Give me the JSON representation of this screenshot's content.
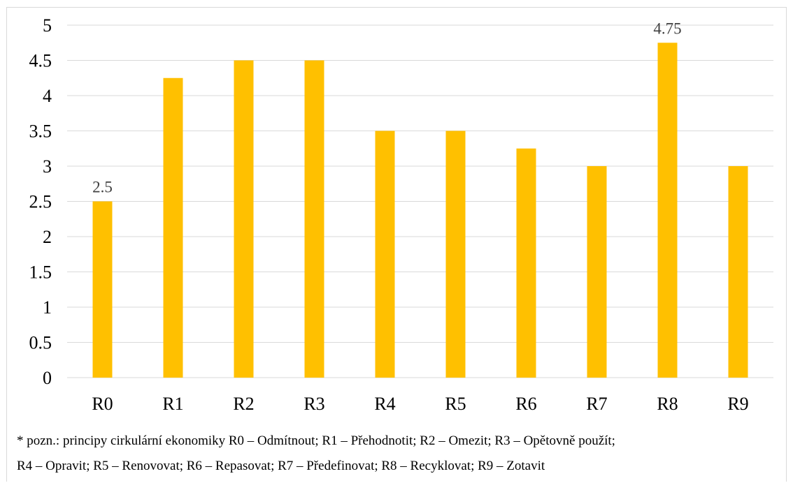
{
  "chart_data": {
    "type": "bar",
    "categories": [
      "R0",
      "R1",
      "R2",
      "R3",
      "R4",
      "R5",
      "R6",
      "R7",
      "R8",
      "R9"
    ],
    "values": [
      2.5,
      4.25,
      4.5,
      4.5,
      3.5,
      3.5,
      3.25,
      3,
      4.75,
      3
    ],
    "ylim": [
      0,
      5
    ],
    "yticks": [
      "0",
      "0.5",
      "1",
      "1.5",
      "2",
      "2.5",
      "3",
      "3.5",
      "4",
      "4.5",
      "5"
    ],
    "data_labels": [
      {
        "category": "R0",
        "text": "2.5"
      },
      {
        "category": "R8",
        "text": "4.75"
      }
    ],
    "bar_color": "#FFC000",
    "grid": true,
    "legend": "none"
  },
  "note": {
    "line1": "* pozn.: principy cirkulární ekonomiky R0 – Odmítnout; R1 – Přehodnotit; R2 – Omezit; R3 – Opětovně použít;",
    "line2": "R4 – Opravit; R5 – Renovovat; R6 – Repasovat; R7 – Předefinovat; R8 – Recyklovat; R9 – Zotavit"
  }
}
